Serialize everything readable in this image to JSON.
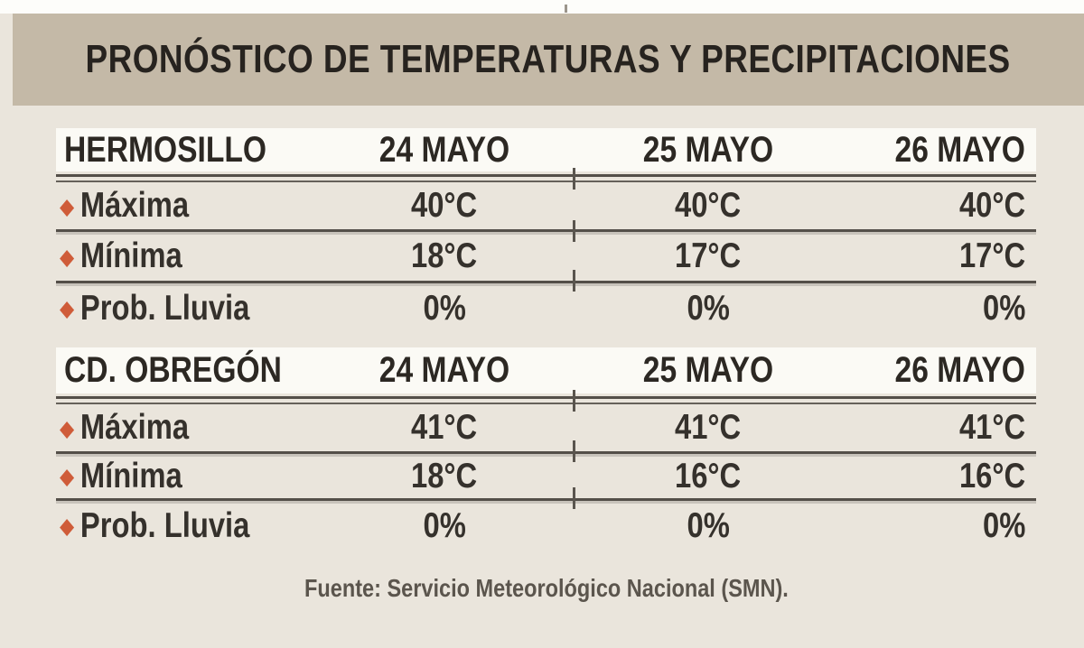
{
  "chart_data": {
    "type": "table",
    "title": "PRONÓSTICO DE TEMPERATURAS Y PRECIPITACIONES",
    "source": "Fuente: Servicio Meteorológico Nacional (SMN).",
    "layout": {
      "legend": "none",
      "grid": "horizontal-rules",
      "sections": 2
    },
    "tables": [
      {
        "city": "HERMOSILLO",
        "columns": [
          "24 MAYO",
          "25 MAYO",
          "26 MAYO"
        ],
        "rows": [
          {
            "label": "Máxima",
            "values": [
              "40°C",
              "40°C",
              "40°C"
            ]
          },
          {
            "label": "Mínima",
            "values": [
              "18°C",
              "17°C",
              "17°C"
            ]
          },
          {
            "label": "Prob. Lluvia",
            "values": [
              "0%",
              "0%",
              "0%"
            ]
          }
        ]
      },
      {
        "city": "CD. OBREGÓN",
        "columns": [
          "24 MAYO",
          "25 MAYO",
          "26 MAYO"
        ],
        "rows": [
          {
            "label": "Máxima",
            "values": [
              "41°C",
              "41°C",
              "41°C"
            ]
          },
          {
            "label": "Mínima",
            "values": [
              "18°C",
              "16°C",
              "16°C"
            ]
          },
          {
            "label": "Prob. Lluvia",
            "values": [
              "0%",
              "0%",
              "0%"
            ]
          }
        ]
      }
    ]
  },
  "icons": {
    "bullet": "◆"
  },
  "colors": {
    "title_bar_bg": "#c4b9a7",
    "canvas_bg": "#eae5dc",
    "header_strip_bg": "#fbfaf5",
    "rule": "#544f49",
    "accent_bullet": "#cf5c39",
    "title_text": "#27231f",
    "body_text": "#35312c",
    "footer_text": "#5b554d"
  }
}
